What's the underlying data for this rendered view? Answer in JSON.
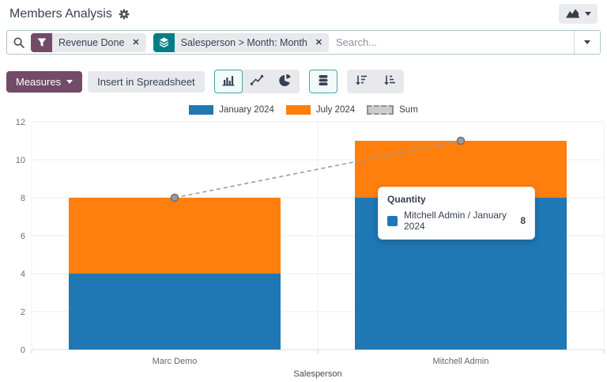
{
  "header": {
    "title": "Members Analysis"
  },
  "search": {
    "placeholder": "Search...",
    "close_glyph": "✕",
    "facets": [
      {
        "icon": "filter-icon",
        "label": "Revenue Done",
        "color": "#714B67"
      },
      {
        "icon": "layers-icon",
        "label": "Salesperson > Month: Month",
        "color": "#017E84"
      }
    ]
  },
  "toolbar": {
    "measures": "Measures",
    "insert_spreadsheet": "Insert in Spreadsheet",
    "chart_types": [
      {
        "name": "bar",
        "active": true
      },
      {
        "name": "line",
        "active": false
      },
      {
        "name": "pie",
        "active": false
      }
    ],
    "stacked_active": true,
    "sort_buttons": [
      "descending",
      "ascending"
    ]
  },
  "chart_data": {
    "type": "bar",
    "stacked": true,
    "categories": [
      "Marc Demo",
      "Mitchell Admin"
    ],
    "series": [
      {
        "name": "January 2024",
        "type": "bar",
        "color": "#1F77B4",
        "values": [
          4,
          8
        ]
      },
      {
        "name": "July 2024",
        "type": "bar",
        "color": "#FF7F0E",
        "values": [
          4,
          3
        ]
      },
      {
        "name": "Sum",
        "type": "line",
        "dashed": true,
        "color": "#9B9B9B",
        "values": [
          8,
          11
        ]
      }
    ],
    "xlabel": "Salesperson",
    "ylabel": "",
    "ylim": [
      0,
      12
    ],
    "yticks": [
      0,
      2,
      4,
      6,
      8,
      10,
      12
    ],
    "grid": true,
    "legend_position": "top"
  },
  "tooltip": {
    "title": "Quantity",
    "rows": [
      {
        "color": "#1F77B4",
        "label": "Mitchell Admin / January 2024",
        "value": "8"
      }
    ]
  },
  "colors": {
    "primary": "#714B67",
    "accent": "#017E84",
    "bar_blue": "#1F77B4",
    "bar_orange": "#FF7F0E",
    "sum_gray": "#9B9B9B",
    "button_bg": "#E7E9ED",
    "text": "#374151"
  }
}
